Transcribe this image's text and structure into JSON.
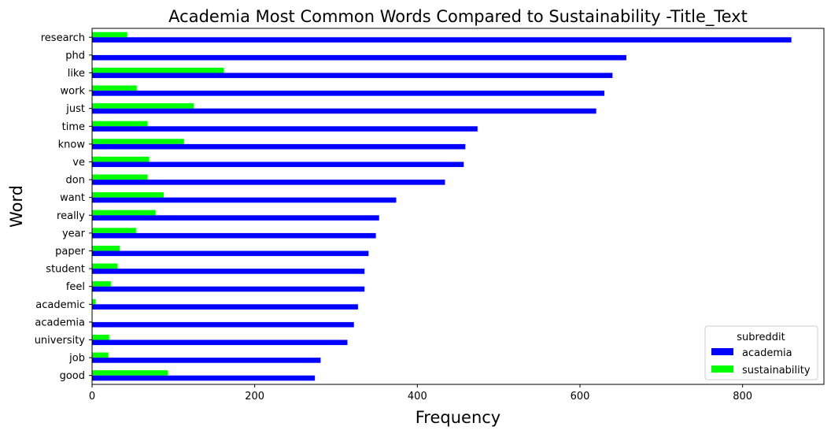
{
  "chart_data": {
    "type": "bar",
    "orientation": "horizontal",
    "title": "Academia Most Common Words Compared to Sustainability -Title_Text",
    "xlabel": "Frequency",
    "ylabel": "Word",
    "xlim": [
      0,
      900
    ],
    "xticks": [
      0,
      200,
      400,
      600,
      800
    ],
    "grid": false,
    "categories": [
      "research",
      "phd",
      "like",
      "work",
      "just",
      "time",
      "know",
      "ve",
      "don",
      "want",
      "really",
      "year",
      "paper",
      "student",
      "feel",
      "academic",
      "academia",
      "university",
      "job",
      "good"
    ],
    "series": [
      {
        "name": "academia",
        "color": "#0000ff",
        "values": [
          860,
          657,
          640,
          630,
          620,
          474,
          459,
          457,
          434,
          374,
          353,
          349,
          340,
          335,
          335,
          327,
          322,
          314,
          281,
          274
        ]
      },
      {
        "name": "sustainability",
        "color": "#00ff00",
        "values": [
          43,
          0,
          162,
          55,
          125,
          68,
          113,
          70,
          68,
          88,
          78,
          54,
          34,
          31,
          23,
          4,
          0,
          21,
          20,
          93
        ]
      }
    ],
    "legend": {
      "title": "subreddit",
      "position": "lower-right"
    }
  }
}
